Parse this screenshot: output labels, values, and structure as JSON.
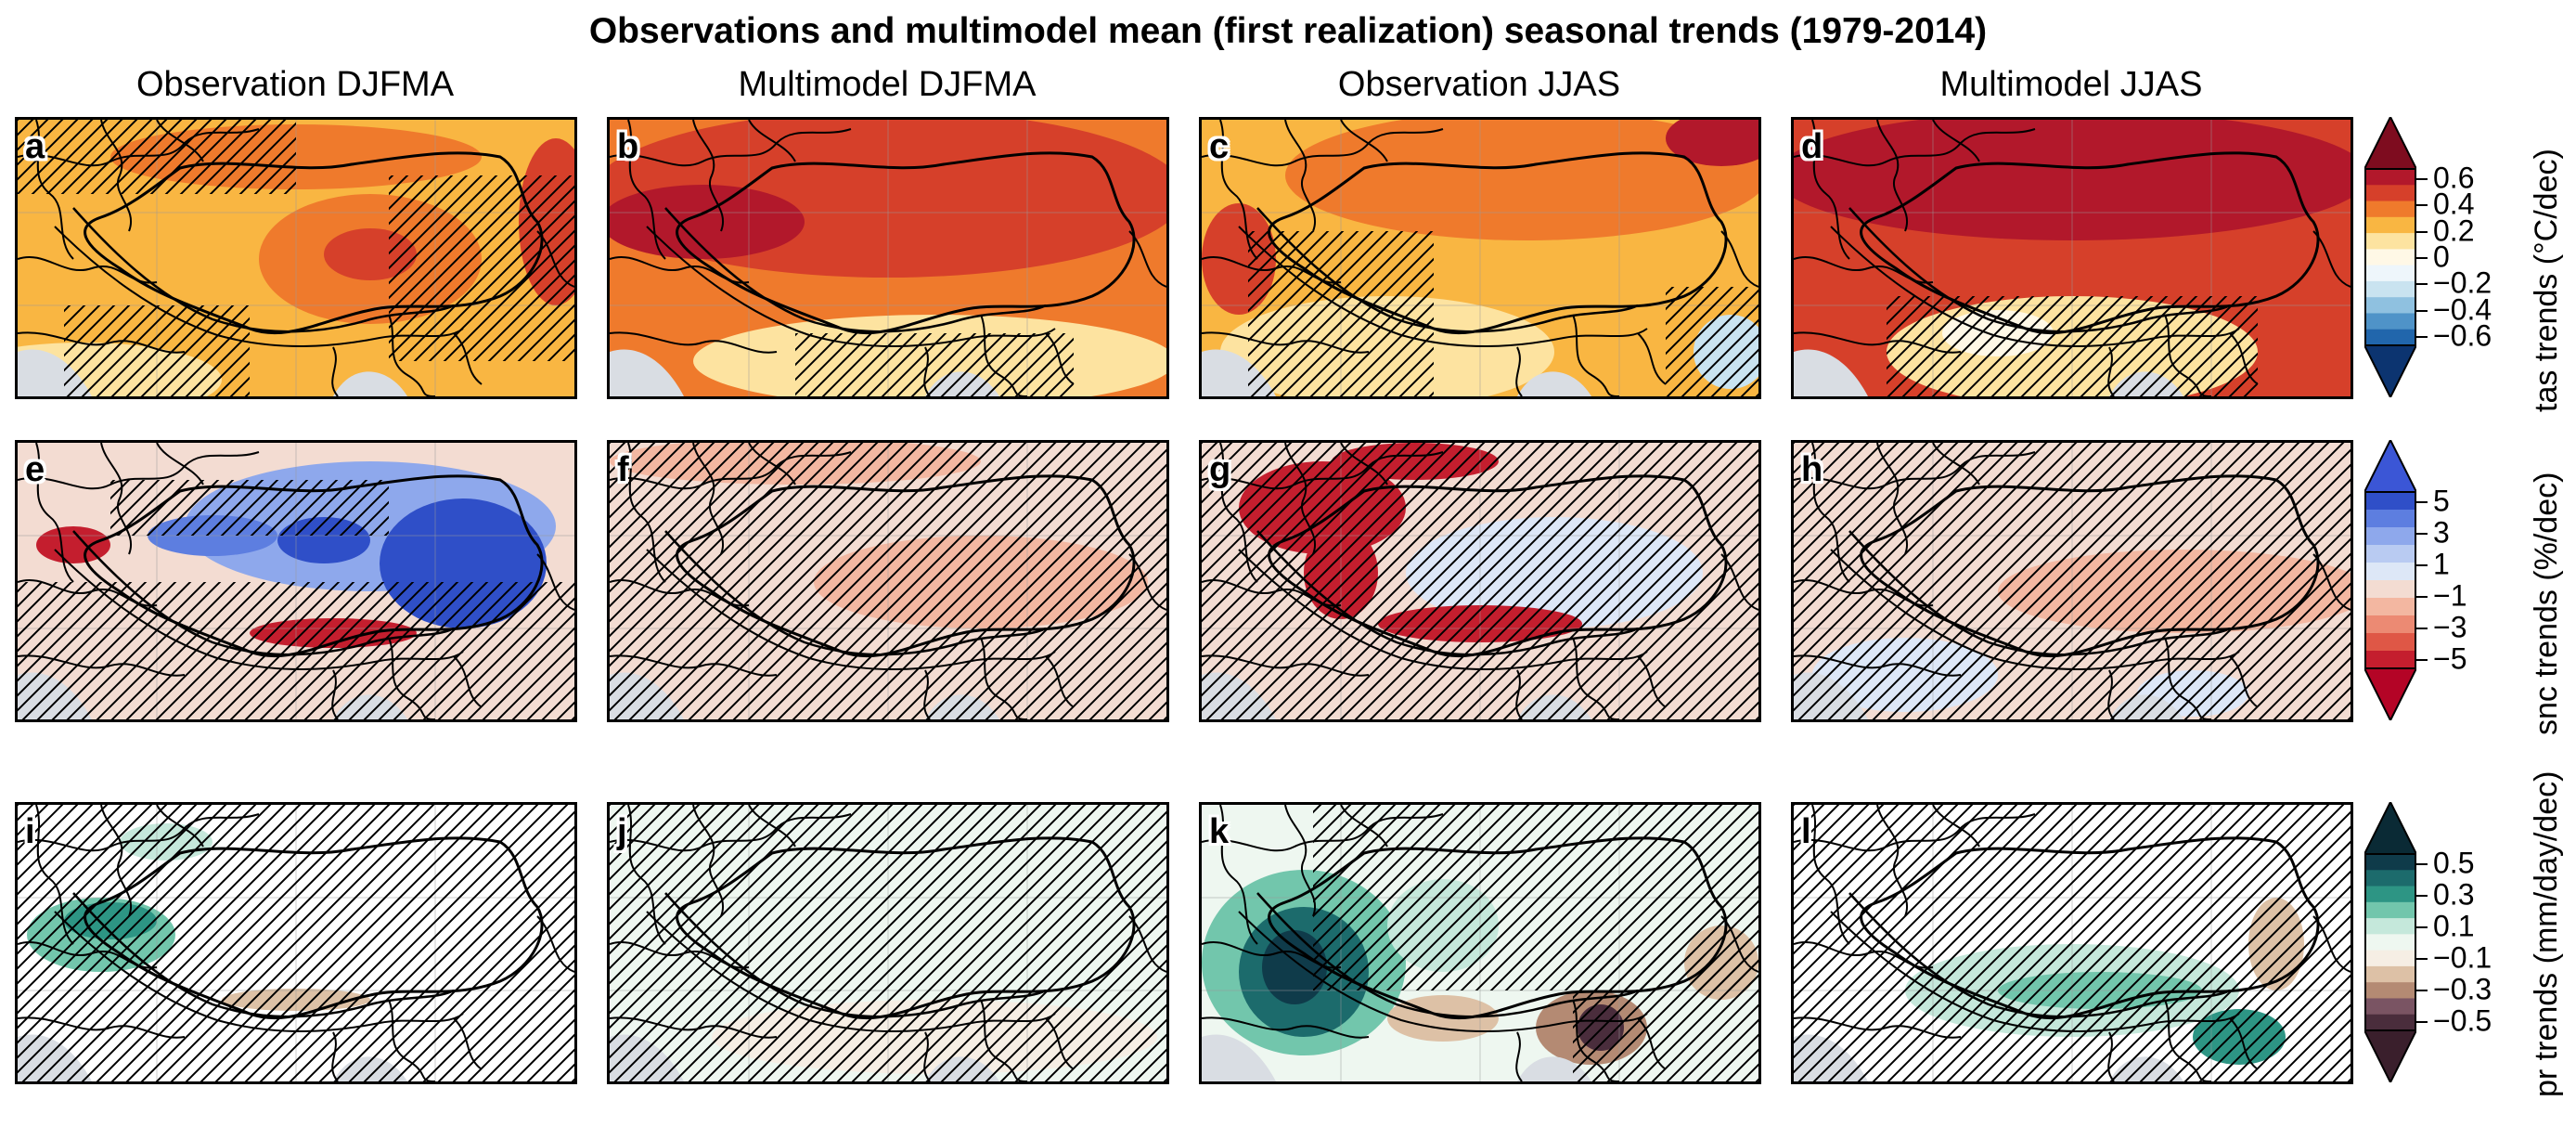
{
  "figure": {
    "title": "Observations and multimodel mean (first realization) seasonal trends (1979-2014)",
    "column_titles": [
      "Observation DJFMA",
      "Multimodel DJFMA",
      "Observation JJAS",
      "Multimodel JJAS"
    ],
    "rows": [
      {
        "variable": "tas",
        "panel_labels": [
          "a",
          "b",
          "c",
          "d"
        ],
        "colorbar": {
          "label": "tas trends (°C/dec)",
          "ticks": [
            "0.6",
            "0.4",
            "0.2",
            "0",
            "−0.2",
            "−0.4",
            "−0.6"
          ],
          "colors": [
            "#b2182b",
            "#d6402a",
            "#ef7a2c",
            "#f9b642",
            "#fde3a0",
            "#fff8e6",
            "#eef6fb",
            "#c9e3f0",
            "#8fc1e0",
            "#4f93c8",
            "#2166ac"
          ],
          "extend_colors": [
            "#7e0c1f",
            "#0c3470"
          ]
        }
      },
      {
        "variable": "snc",
        "panel_labels": [
          "e",
          "f",
          "g",
          "h"
        ],
        "colorbar": {
          "label": "snc trends (%/dec)",
          "ticks": [
            "5",
            "3",
            "1",
            "−1",
            "−3",
            "−5"
          ],
          "colors": [
            "#2f4fc8",
            "#5d7ee0",
            "#8ea8ec",
            "#b9cbf2",
            "#dde7f7",
            "#f3dcd2",
            "#f3b7a1",
            "#ec8a73",
            "#df5746",
            "#c41e2e"
          ],
          "extend_colors": [
            "#3b56d6",
            "#b40426"
          ]
        }
      },
      {
        "variable": "pr",
        "panel_labels": [
          "i",
          "j",
          "k",
          "l"
        ],
        "colorbar": {
          "label": "pr trends (mm/day/dec)",
          "ticks": [
            "0.5",
            "0.3",
            "0.1",
            "−0.1",
            "−0.3",
            "−0.5"
          ],
          "colors": [
            "#0f3b4a",
            "#1c6b6c",
            "#2d9584",
            "#72c6ac",
            "#c5e8db",
            "#eef7f0",
            "#f6eee4",
            "#ddc1a6",
            "#b48a73",
            "#7a5463",
            "#4a2d3c"
          ],
          "extend_colors": [
            "#0a2a35",
            "#3a1f2c"
          ]
        }
      }
    ]
  }
}
